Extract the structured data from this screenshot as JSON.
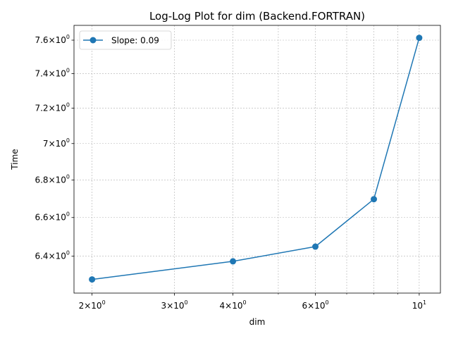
{
  "chart_data": {
    "type": "line",
    "title": "Log-Log Plot for dim (Backend.FORTRAN)",
    "xlabel": "dim",
    "ylabel": "Time",
    "xscale": "log",
    "yscale": "log",
    "xlim": [
      1.83,
      11.1
    ],
    "ylim": [
      6.215,
      7.69
    ],
    "grid": true,
    "legend_position": "top-left",
    "series": [
      {
        "name": "Slope: 0.09",
        "color": "#1f77b4",
        "marker": "circle",
        "x": [
          2,
          4,
          6,
          8,
          10
        ],
        "y": [
          6.283,
          6.374,
          6.449,
          6.697,
          7.614
        ]
      }
    ],
    "x_ticks": [
      {
        "value": 2,
        "base": "2",
        "mult": "×",
        "exp_base": "10",
        "exp": "0"
      },
      {
        "value": 3,
        "base": "3",
        "mult": "×",
        "exp_base": "10",
        "exp": "0"
      },
      {
        "value": 4,
        "base": "4",
        "mult": "×",
        "exp_base": "10",
        "exp": "0"
      },
      {
        "value": 6,
        "base": "6",
        "mult": "×",
        "exp_base": "10",
        "exp": "0"
      },
      {
        "value": 10,
        "base": "",
        "mult": "",
        "exp_base": "10",
        "exp": "1"
      }
    ],
    "x_minor_ticks": [
      5,
      7,
      8,
      9
    ],
    "y_ticks": [
      {
        "value": 6.4,
        "base": "6.4",
        "mult": "×",
        "exp_base": "10",
        "exp": "0"
      },
      {
        "value": 6.6,
        "base": "6.6",
        "mult": "×",
        "exp_base": "10",
        "exp": "0"
      },
      {
        "value": 6.8,
        "base": "6.8",
        "mult": "×",
        "exp_base": "10",
        "exp": "0"
      },
      {
        "value": 7.0,
        "base": "7",
        "mult": "×",
        "exp_base": "10",
        "exp": "0"
      },
      {
        "value": 7.2,
        "base": "7.2",
        "mult": "×",
        "exp_base": "10",
        "exp": "0"
      },
      {
        "value": 7.4,
        "base": "7.4",
        "mult": "×",
        "exp_base": "10",
        "exp": "0"
      },
      {
        "value": 7.6,
        "base": "7.6",
        "mult": "×",
        "exp_base": "10",
        "exp": "0"
      }
    ]
  }
}
